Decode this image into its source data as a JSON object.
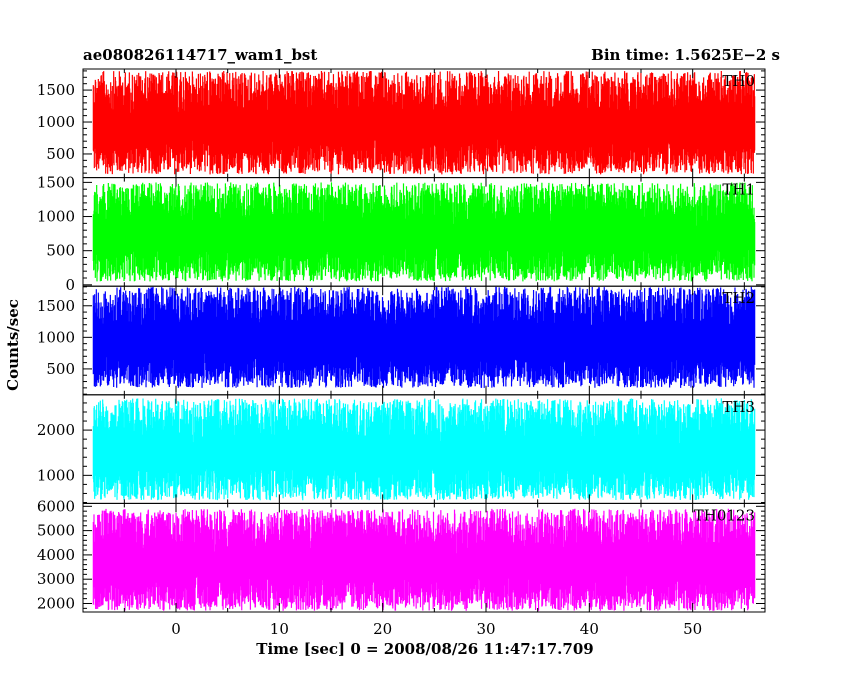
{
  "chart_data": {
    "type": "line",
    "title_left": "ae080826114717_wam1_bst",
    "title_right": "Bin time: 1.5625E−2 s",
    "xlabel": "Time [sec] 0 = 2008/08/26 11:47:17.709",
    "ylabel": "Counts/sec",
    "xlim": [
      -9,
      57
    ],
    "x_data_range": [
      -8,
      56
    ],
    "xticks": [
      0,
      10,
      20,
      30,
      40,
      50
    ],
    "panels": [
      {
        "name": "TH0",
        "color": "#ff0000",
        "ylim": [
          130,
          1830
        ],
        "yticks": [
          500,
          1000,
          1500
        ],
        "baseline": 900,
        "low": 180,
        "high": 1800,
        "range_summary": {
          "min": 180,
          "max": 1800,
          "typical": 900
        }
      },
      {
        "name": "TH1",
        "color": "#00ff00",
        "ylim": [
          -20,
          1570
        ],
        "yticks": [
          0,
          500,
          1000,
          1500
        ],
        "baseline": 750,
        "low": 50,
        "high": 1500,
        "range_summary": {
          "min": 50,
          "max": 1500,
          "typical": 750
        }
      },
      {
        "name": "TH2",
        "color": "#0000ff",
        "ylim": [
          90,
          1810
        ],
        "yticks": [
          500,
          1000,
          1500
        ],
        "baseline": 900,
        "low": 200,
        "high": 1800,
        "range_summary": {
          "min": 200,
          "max": 1800,
          "typical": 900
        }
      },
      {
        "name": "TH3",
        "color": "#00ffff",
        "ylim": [
          380,
          2780
        ],
        "yticks": [
          1000,
          2000
        ],
        "baseline": 1500,
        "low": 450,
        "high": 2700,
        "range_summary": {
          "min": 450,
          "max": 2700,
          "typical": 1500
        }
      },
      {
        "name": "TH0123",
        "color": "#ff00ff",
        "ylim": [
          1650,
          6120
        ],
        "yticks": [
          2000,
          3000,
          4000,
          5000,
          6000
        ],
        "baseline": 3700,
        "low": 1700,
        "high": 5900,
        "range_summary": {
          "min": 1700,
          "max": 5900,
          "typical": 3700
        }
      }
    ]
  }
}
